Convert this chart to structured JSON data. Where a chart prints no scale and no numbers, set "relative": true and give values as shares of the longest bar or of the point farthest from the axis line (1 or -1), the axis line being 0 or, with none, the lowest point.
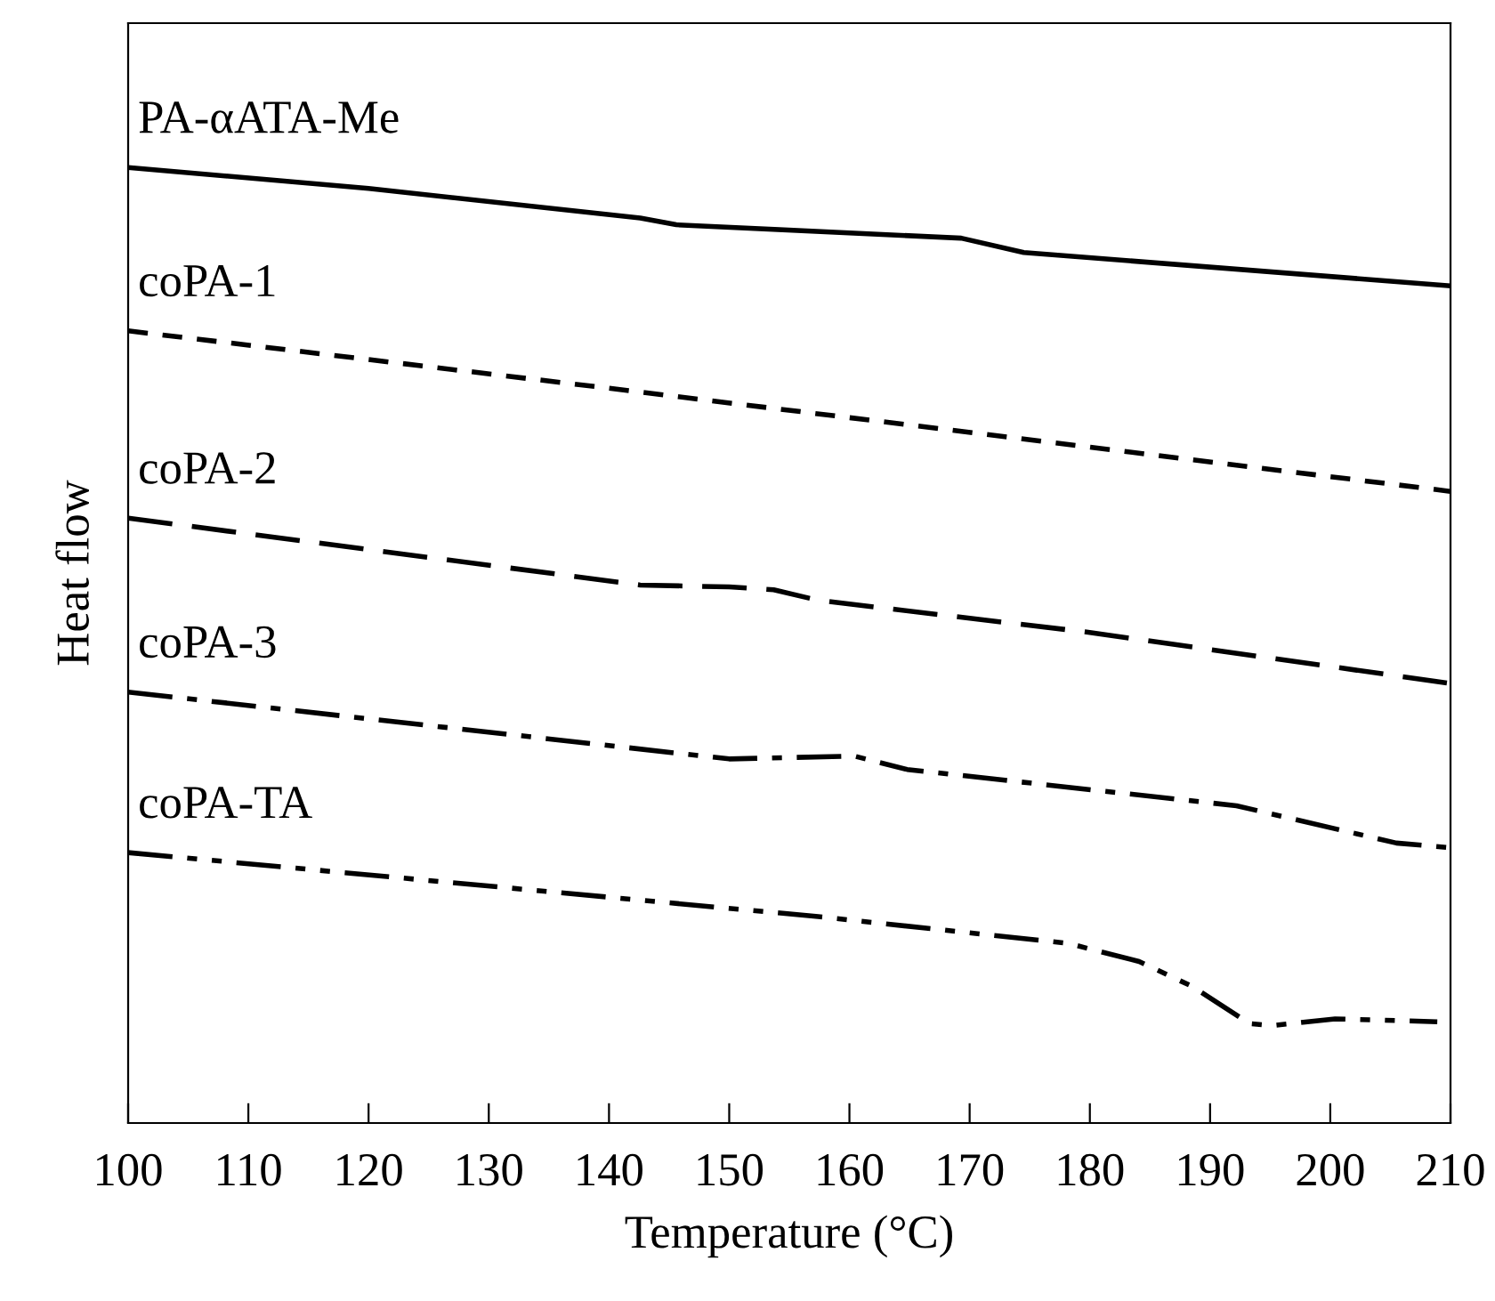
{
  "chart_data": {
    "type": "line",
    "relative": true,
    "xlabel": "Temperature (°C)",
    "ylabel": "Heat flow",
    "xlim": [
      100,
      210
    ],
    "xticks": [
      100,
      110,
      120,
      130,
      140,
      150,
      160,
      170,
      180,
      190,
      200,
      210
    ],
    "grid": false,
    "legend": false,
    "marker": "none",
    "tick_labels": "x",
    "series": [
      {
        "name": "PA-αATA-Me",
        "color": "#000000",
        "line_style": "solid",
        "x": [
          100,
          120,
          142.6,
          145.6,
          169.3,
          174.5,
          210
        ],
        "values": [
          1.0,
          0.978,
          0.947,
          0.94,
          0.926,
          0.911,
          0.876
        ]
      },
      {
        "name": "coPA-1",
        "color": "#000000",
        "line_style": "dotted",
        "x": [
          100,
          120,
          142.6,
          210
        ],
        "values": [
          0.829,
          0.799,
          0.765,
          0.661
        ]
      },
      {
        "name": "coPA-2",
        "color": "#000000",
        "line_style": "dashed",
        "x": [
          100,
          142.6,
          150,
          153.7,
          157.4,
          179.6,
          210
        ],
        "values": [
          0.633,
          0.563,
          0.561,
          0.558,
          0.547,
          0.514,
          0.46
        ]
      },
      {
        "name": "coPA-3",
        "color": "#000000",
        "line_style": "dashdot",
        "x": [
          100,
          150,
          160.4,
          164.8,
          192.2,
          205.5,
          210
        ],
        "values": [
          0.451,
          0.381,
          0.384,
          0.37,
          0.332,
          0.293,
          0.288
        ]
      },
      {
        "name": "coPA-TA",
        "color": "#000000",
        "line_style": "dashdotdot",
        "x": [
          100,
          157.4,
          178.2,
          184.1,
          188.5,
          193.3,
          195.2,
          200.4,
          208.9
        ],
        "values": [
          0.283,
          0.216,
          0.188,
          0.169,
          0.143,
          0.104,
          0.102,
          0.109,
          0.106
        ]
      }
    ]
  }
}
